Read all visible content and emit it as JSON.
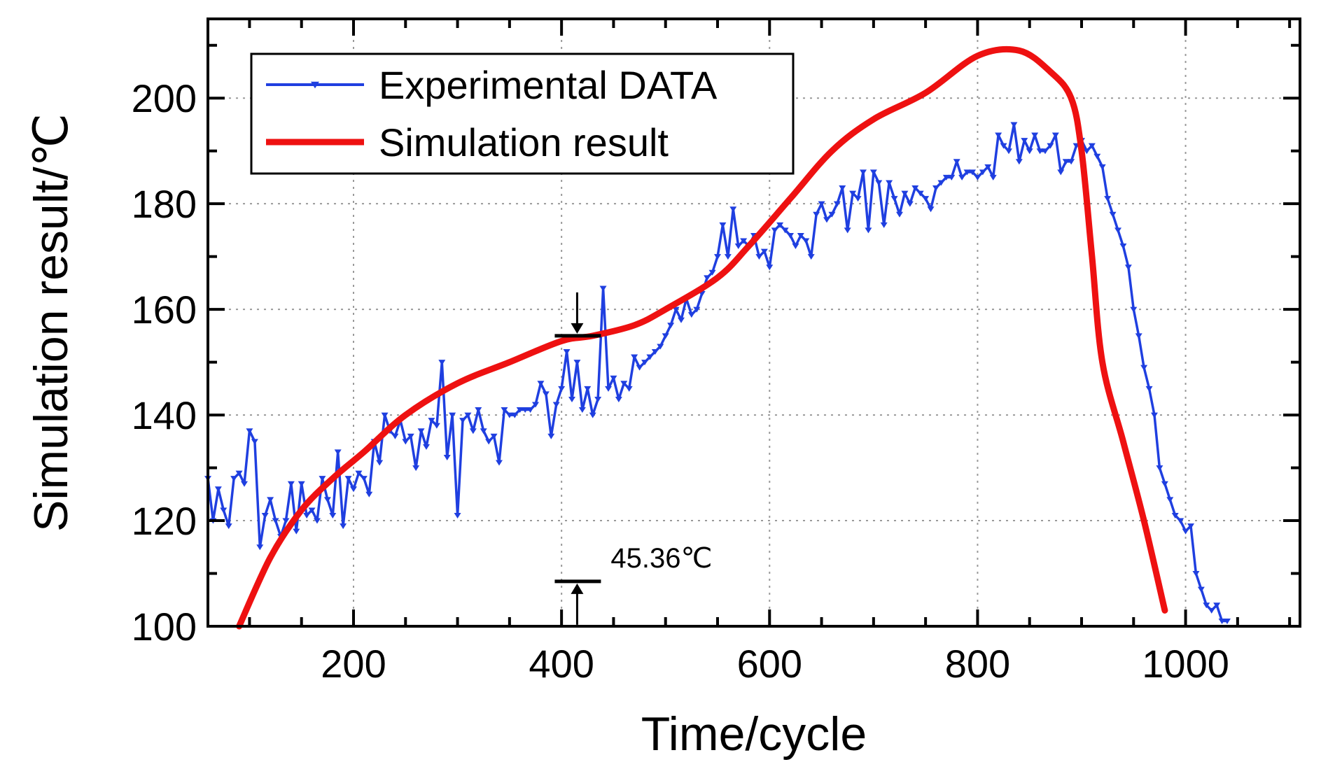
{
  "chart_data": {
    "type": "line",
    "title": "",
    "xlabel": "Time/cycle",
    "ylabel": "Simulation result/℃",
    "xlim": [
      60,
      1110
    ],
    "ylim": [
      100,
      215
    ],
    "x_ticks": [
      200,
      400,
      600,
      800,
      1000
    ],
    "y_ticks": [
      100,
      120,
      140,
      160,
      180,
      200
    ],
    "x_minor_step": 50,
    "y_minor_step": 10,
    "grid": true,
    "legend_position": "top-left",
    "series": [
      {
        "name": "Experimental DATA",
        "color": "#1f3fe0",
        "marker": "triangle-down",
        "x": [
          60,
          65,
          70,
          75,
          80,
          85,
          90,
          95,
          100,
          105,
          110,
          115,
          120,
          125,
          130,
          135,
          140,
          145,
          150,
          155,
          160,
          165,
          170,
          175,
          180,
          185,
          190,
          195,
          200,
          205,
          210,
          215,
          220,
          225,
          230,
          235,
          240,
          245,
          250,
          255,
          260,
          265,
          270,
          275,
          280,
          285,
          290,
          295,
          300,
          305,
          310,
          315,
          320,
          325,
          330,
          335,
          340,
          345,
          350,
          355,
          360,
          365,
          370,
          375,
          380,
          385,
          390,
          395,
          400,
          405,
          410,
          415,
          420,
          425,
          430,
          435,
          440,
          445,
          450,
          455,
          460,
          465,
          470,
          475,
          480,
          485,
          490,
          495,
          500,
          505,
          510,
          515,
          520,
          525,
          530,
          535,
          540,
          545,
          550,
          555,
          560,
          565,
          570,
          575,
          580,
          585,
          590,
          595,
          600,
          605,
          610,
          615,
          620,
          625,
          630,
          635,
          640,
          645,
          650,
          655,
          660,
          665,
          670,
          675,
          680,
          685,
          690,
          695,
          700,
          705,
          710,
          715,
          720,
          725,
          730,
          735,
          740,
          745,
          750,
          755,
          760,
          765,
          770,
          775,
          780,
          785,
          790,
          795,
          800,
          805,
          810,
          815,
          820,
          825,
          830,
          835,
          840,
          845,
          850,
          855,
          860,
          865,
          870,
          875,
          880,
          885,
          890,
          895,
          900,
          905,
          910,
          915,
          920,
          925,
          930,
          935,
          940,
          945,
          950,
          955,
          960,
          965,
          970,
          975,
          980,
          985,
          990,
          995,
          1000,
          1005,
          1010,
          1015,
          1020,
          1025,
          1030,
          1035,
          1040
        ],
        "y": [
          128,
          120,
          126,
          122,
          119,
          128,
          129,
          127,
          137,
          135,
          115,
          121,
          124,
          120,
          117,
          120,
          127,
          118,
          127,
          121,
          122,
          120,
          128,
          124,
          121,
          133,
          119,
          128,
          126,
          129,
          128,
          125,
          135,
          131,
          140,
          137,
          136,
          139,
          135,
          136,
          130,
          137,
          134,
          139,
          138,
          150,
          132,
          140,
          121,
          139,
          140,
          137,
          141,
          137,
          135,
          136,
          131,
          141,
          140,
          140,
          141,
          141,
          141,
          142,
          146,
          144,
          136,
          142,
          145,
          152,
          143,
          150,
          141,
          145,
          140,
          143,
          164,
          145,
          147,
          143,
          146,
          145,
          151,
          149,
          150,
          151,
          152,
          153,
          155,
          157,
          160,
          158,
          162,
          159,
          160,
          163,
          166,
          167,
          170,
          176,
          170,
          179,
          172,
          173,
          172,
          174,
          170,
          171,
          168,
          175,
          176,
          175,
          174,
          172,
          174,
          173,
          170,
          178,
          180,
          177,
          178,
          180,
          183,
          175,
          182,
          181,
          186,
          175,
          186,
          184,
          176,
          184,
          181,
          178,
          182,
          180,
          183,
          182,
          181,
          179,
          183,
          184,
          185,
          185,
          188,
          185,
          186,
          186,
          185,
          186,
          187,
          185,
          193,
          191,
          190,
          195,
          188,
          192,
          190,
          193,
          190,
          190,
          191,
          193,
          186,
          188,
          188,
          191,
          192,
          190,
          191,
          189,
          187,
          181,
          178,
          175,
          172,
          168,
          160,
          155,
          149,
          145,
          140,
          130,
          127,
          124,
          121,
          120,
          118,
          119,
          110,
          107,
          104,
          103,
          104,
          101,
          101
        ]
      },
      {
        "name": "Simulation result",
        "color": "#ee1111",
        "marker": "none",
        "x": [
          90,
          120,
          150,
          180,
          210,
          250,
          300,
          350,
          400,
          430,
          470,
          500,
          550,
          580,
          620,
          660,
          700,
          750,
          800,
          840,
          870,
          890,
          900,
          910,
          920,
          940,
          960,
          980
        ],
        "y": [
          100,
          113,
          122,
          128,
          133,
          140,
          146,
          150,
          154,
          155,
          157,
          160,
          166,
          172,
          181,
          190,
          196,
          201,
          208,
          209,
          205,
          200,
          190,
          170,
          150,
          135,
          120,
          103
        ]
      }
    ],
    "annotation": {
      "label": "45.36℃",
      "x": 415,
      "y_top": 155,
      "y_bottom": 108.5
    }
  }
}
